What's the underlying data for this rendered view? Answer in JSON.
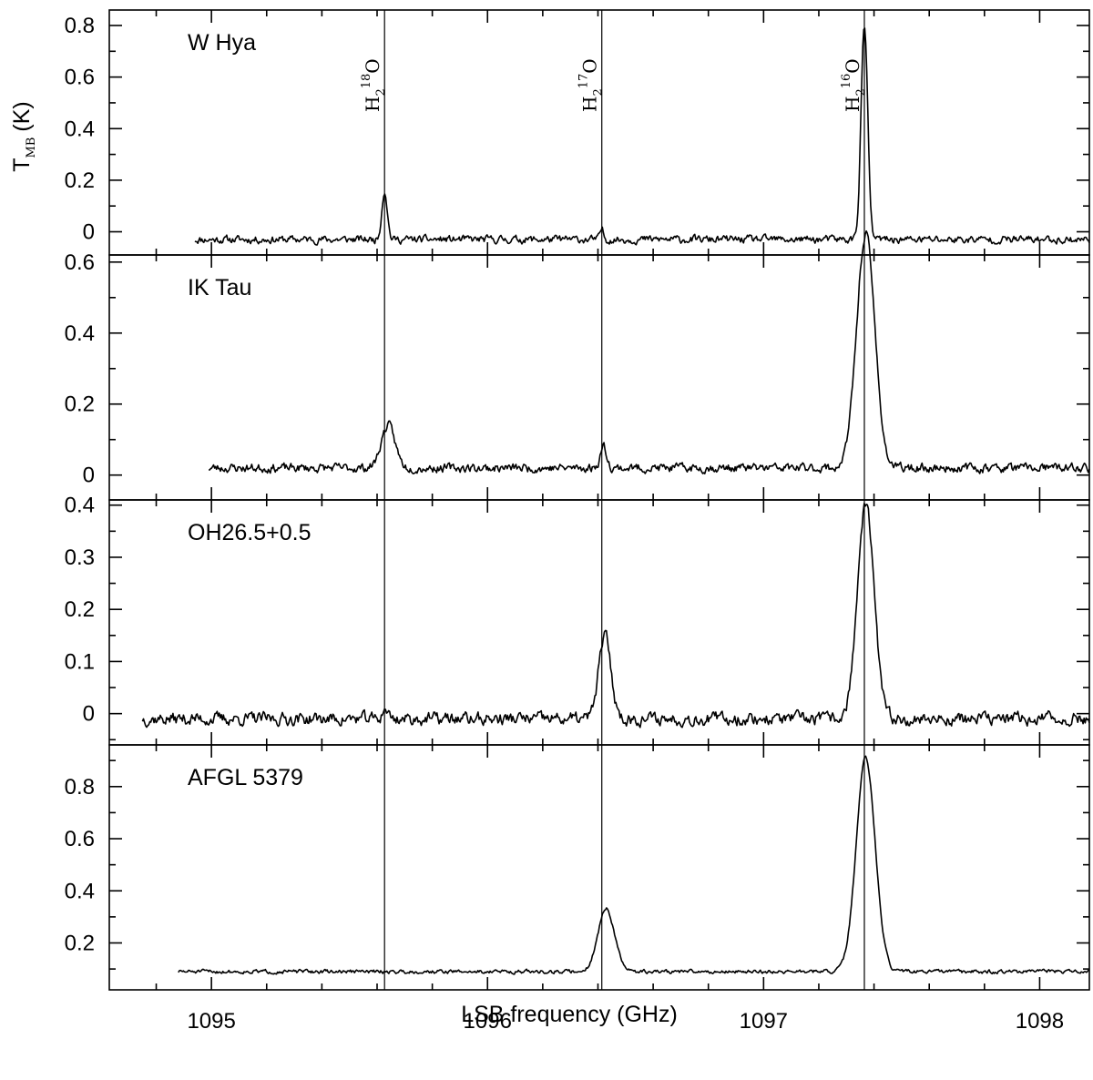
{
  "chart_data": {
    "type": "line",
    "xlabel": "LSB frequency (GHz)",
    "ylabel": "T",
    "ylabel_sub": "MB",
    "ylabel_unit": "(K)",
    "xlim": [
      1094.63,
      1098.18
    ],
    "x_tick_labels": [
      "1095",
      "1096",
      "1097",
      "1098"
    ],
    "x_ticks": [
      1095,
      1096,
      1097,
      1098
    ],
    "x_minor_step": 0.2,
    "line_markers": [
      {
        "name": "H2 18O",
        "freq": 1095.627,
        "main": "H",
        "sub": "2",
        "sup": "18",
        "tail": "O"
      },
      {
        "name": "H2 17O",
        "freq": 1096.414,
        "main": "H",
        "sub": "2",
        "sup": "17",
        "tail": "O"
      },
      {
        "name": "H2 16O",
        "freq": 1097.365,
        "main": "H",
        "sub": "2",
        "sup": "16",
        "tail": "O"
      }
    ],
    "panels": [
      {
        "name": "W Hya",
        "ylim": [
          -0.09,
          0.86
        ],
        "y_ticks": [
          0,
          0.2,
          0.4,
          0.6,
          0.8
        ],
        "y_tick_labels": [
          "0",
          "0.2",
          "0.4",
          "0.6",
          "0.8"
        ],
        "x_start": 1094.94,
        "baseline": -0.03,
        "noise": 0.012,
        "seed": 11,
        "lines": [
          {
            "center": 1095.627,
            "amp": 0.19,
            "sigma": 0.01
          },
          {
            "center": 1096.414,
            "amp": 0.04,
            "sigma": 0.006
          },
          {
            "center": 1097.365,
            "amp": 0.83,
            "sigma": 0.012
          }
        ]
      },
      {
        "name": "IK Tau",
        "ylim": [
          -0.07,
          0.62
        ],
        "y_ticks": [
          0,
          0.2,
          0.4,
          0.6
        ],
        "y_tick_labels": [
          "0",
          "0.2",
          "0.4",
          "0.6"
        ],
        "x_start": 1094.99,
        "baseline": 0.02,
        "noise": 0.01,
        "seed": 23,
        "lines": [
          {
            "center": 1095.64,
            "amp": 0.12,
            "sigma": 0.025
          },
          {
            "center": 1096.42,
            "amp": 0.06,
            "sigma": 0.012
          },
          {
            "center": 1097.37,
            "amp": 0.66,
            "sigma": 0.033
          }
        ]
      },
      {
        "name": "OH26.5+0.5",
        "ylim": [
          -0.06,
          0.41
        ],
        "y_ticks": [
          0,
          0.1,
          0.2,
          0.3,
          0.4
        ],
        "y_tick_labels": [
          "0",
          "0.1",
          "0.2",
          "0.3",
          "0.4"
        ],
        "x_start": 1094.75,
        "baseline": -0.01,
        "noise": 0.01,
        "seed": 37,
        "lines": [
          {
            "center": 1095.63,
            "amp": 0.02,
            "sigma": 0.01
          },
          {
            "center": 1096.425,
            "amp": 0.16,
            "sigma": 0.022
          },
          {
            "center": 1097.37,
            "amp": 0.41,
            "sigma": 0.03
          }
        ]
      },
      {
        "name": "AFGL 5379",
        "ylim": [
          0.02,
          0.96
        ],
        "y_ticks": [
          0.2,
          0.4,
          0.6,
          0.8
        ],
        "y_tick_labels": [
          "0.2",
          "0.4",
          "0.6",
          "0.8"
        ],
        "x_start": 1094.88,
        "baseline": 0.09,
        "noise": 0.006,
        "seed": 51,
        "lines": [
          {
            "center": 1096.43,
            "amp": 0.24,
            "sigma": 0.03
          },
          {
            "center": 1097.37,
            "amp": 0.82,
            "sigma": 0.034
          }
        ]
      }
    ]
  }
}
